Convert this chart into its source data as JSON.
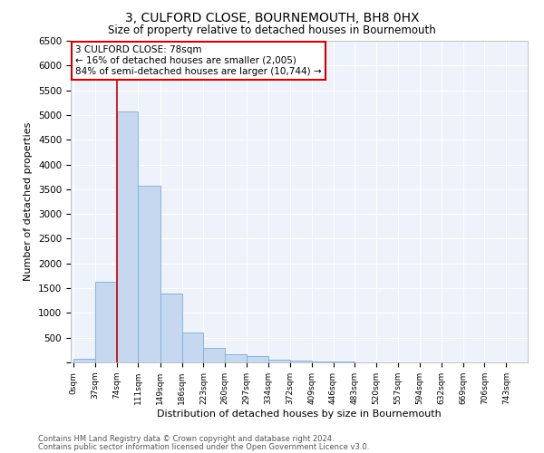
{
  "title": "3, CULFORD CLOSE, BOURNEMOUTH, BH8 0HX",
  "subtitle": "Size of property relative to detached houses in Bournemouth",
  "xlabel": "Distribution of detached houses by size in Bournemouth",
  "ylabel": "Number of detached properties",
  "bar_color": "#c5d8f0",
  "bar_edge_color": "#7aafd4",
  "background_color": "#eef2fa",
  "grid_color": "#ffffff",
  "annotation_box_color": "#cc0000",
  "annotation_line1": "3 CULFORD CLOSE: 78sqm",
  "annotation_line2": "← 16% of detached houses are smaller (2,005)",
  "annotation_line3": "84% of semi-detached houses are larger (10,744) →",
  "vline_x": 74,
  "vline_color": "#cc0000",
  "footer_line1": "Contains HM Land Registry data © Crown copyright and database right 2024.",
  "footer_line2": "Contains public sector information licensed under the Open Government Licence v3.0.",
  "bin_edges": [
    0,
    37,
    74,
    111,
    149,
    186,
    223,
    260,
    297,
    334,
    372,
    409,
    446,
    483,
    520,
    557,
    594,
    632,
    669,
    706,
    743
  ],
  "bar_heights": [
    75,
    1625,
    5075,
    3575,
    1400,
    600,
    300,
    160,
    120,
    50,
    30,
    15,
    10,
    0,
    0,
    0,
    0,
    0,
    0,
    0
  ],
  "ylim": [
    0,
    6500
  ],
  "yticks": [
    0,
    500,
    1000,
    1500,
    2000,
    2500,
    3000,
    3500,
    4000,
    4500,
    5000,
    5500,
    6000,
    6500
  ],
  "xlim_left": -5,
  "xlim_right": 780
}
